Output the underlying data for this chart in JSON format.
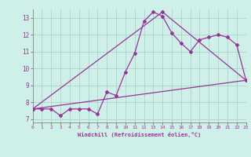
{
  "background_color": "#cff0e8",
  "grid_color": "#aad4cc",
  "line_color": "#993399",
  "marker": "D",
  "marker_size": 2,
  "xlabel": "Windchill (Refroidissement éolien,°C)",
  "xlim": [
    0,
    23
  ],
  "ylim": [
    6.8,
    13.5
  ],
  "xticks": [
    0,
    1,
    2,
    3,
    4,
    5,
    6,
    7,
    8,
    9,
    10,
    11,
    12,
    13,
    14,
    15,
    16,
    17,
    18,
    19,
    20,
    21,
    22,
    23
  ],
  "yticks": [
    7,
    8,
    9,
    10,
    11,
    12,
    13
  ],
  "line1_x": [
    0,
    1,
    2,
    3,
    4,
    5,
    6,
    7,
    8,
    9,
    10,
    11,
    12,
    13,
    14,
    15,
    16,
    17,
    18,
    19,
    20,
    21,
    22,
    23
  ],
  "line1_y": [
    7.6,
    7.6,
    7.6,
    7.2,
    7.6,
    7.6,
    7.6,
    7.3,
    8.6,
    8.4,
    9.8,
    10.9,
    12.8,
    13.35,
    13.1,
    12.1,
    11.5,
    11.0,
    11.7,
    11.85,
    12.0,
    11.85,
    11.4,
    9.3
  ],
  "line2_x": [
    0,
    23
  ],
  "line2_y": [
    7.6,
    9.3
  ],
  "line3_x": [
    0,
    14,
    23
  ],
  "line3_y": [
    7.6,
    13.35,
    9.3
  ]
}
